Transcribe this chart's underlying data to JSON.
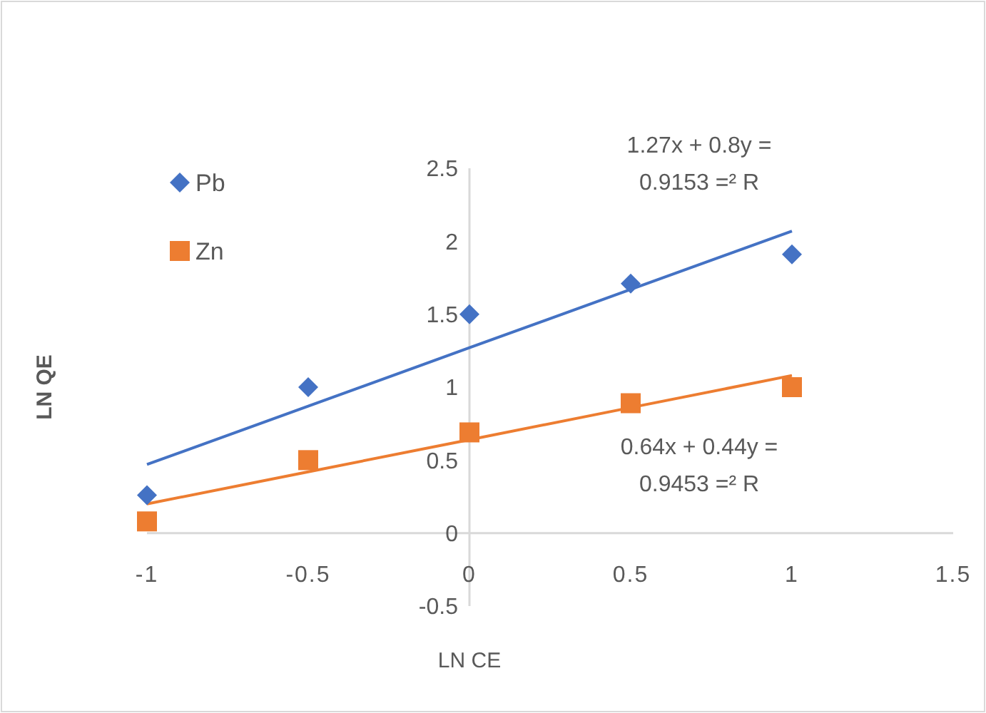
{
  "chart_data": {
    "type": "scatter",
    "xlabel": "LN CE",
    "ylabel": "LN QE",
    "xlim": [
      -1,
      1.5
    ],
    "xticks": [
      -1,
      -0.5,
      0,
      0.5,
      1,
      1.5
    ],
    "ylim": [
      -0.5,
      2.5
    ],
    "yticks": [
      -0.5,
      0,
      0.5,
      1,
      1.5,
      2,
      2.5
    ],
    "grid": false,
    "legend": "top left",
    "x": [
      -1,
      -0.5,
      0,
      0.5,
      1
    ],
    "series": [
      {
        "name": "Pb",
        "color": "#4472c4",
        "marker": "diamond",
        "values": [
          0.26,
          1.0,
          1.5,
          1.71,
          1.91
        ]
      },
      {
        "name": "Zn",
        "color": "#ed7d31",
        "marker": "square",
        "values": [
          0.08,
          0.5,
          0.69,
          0.89,
          1.0
        ]
      },
      {
        "type": "line",
        "color": "#4472c4",
        "values": [
          0.47,
          0.87,
          1.27,
          1.67,
          2.07
        ]
      },
      {
        "type": "line",
        "color": "#ed7d31",
        "values": [
          0.2,
          0.42,
          0.64,
          0.86,
          1.08
        ]
      }
    ],
    "annotations": [
      "1.27x + 0.8y =\n0.9153 =² R",
      "0.64x + 0.44y =\n0.9453 =² R"
    ]
  }
}
